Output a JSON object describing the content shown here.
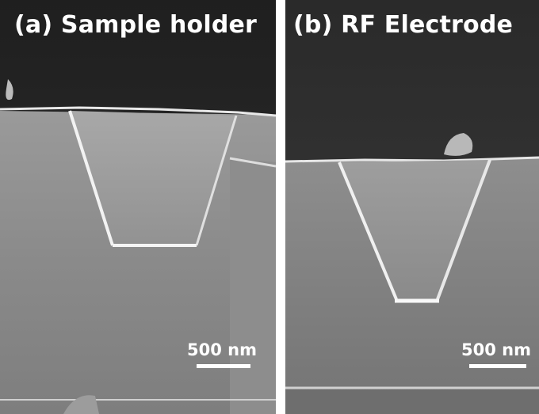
{
  "panels": [
    {
      "label": "(a) Sample holder",
      "scale_bar": "500 nm"
    },
    {
      "label": "(b) RF Electrode",
      "scale_bar": "500 nm"
    }
  ],
  "colors": {
    "vacuum": "#2b2b2b",
    "substrate": "#8a8a8a",
    "trench_interior": "#9a9a9a",
    "edge_highlight": "#f0f0f0",
    "label_text": "#ffffff"
  }
}
